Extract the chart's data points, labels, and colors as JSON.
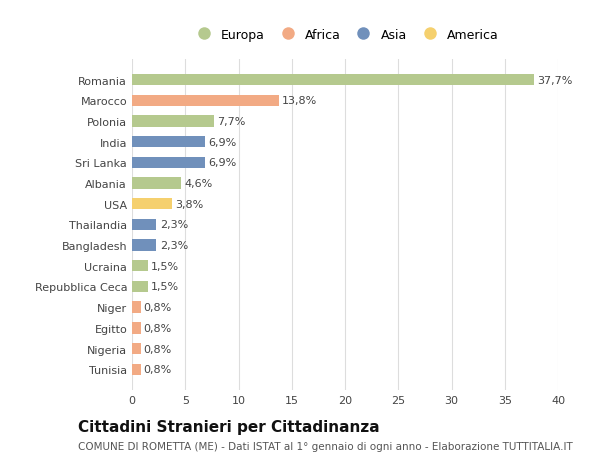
{
  "countries": [
    "Romania",
    "Marocco",
    "Polonia",
    "India",
    "Sri Lanka",
    "Albania",
    "USA",
    "Thailandia",
    "Bangladesh",
    "Ucraina",
    "Repubblica Ceca",
    "Niger",
    "Egitto",
    "Nigeria",
    "Tunisia"
  ],
  "values": [
    37.7,
    13.8,
    7.7,
    6.9,
    6.9,
    4.6,
    3.8,
    2.3,
    2.3,
    1.5,
    1.5,
    0.8,
    0.8,
    0.8,
    0.8
  ],
  "labels": [
    "37,7%",
    "13,8%",
    "7,7%",
    "6,9%",
    "6,9%",
    "4,6%",
    "3,8%",
    "2,3%",
    "2,3%",
    "1,5%",
    "1,5%",
    "0,8%",
    "0,8%",
    "0,8%",
    "0,8%"
  ],
  "continents": [
    "Europa",
    "Africa",
    "Europa",
    "Asia",
    "Asia",
    "Europa",
    "America",
    "Asia",
    "Asia",
    "Europa",
    "Europa",
    "Africa",
    "Africa",
    "Africa",
    "Africa"
  ],
  "colors": {
    "Europa": "#b5c98e",
    "Africa": "#f2aa84",
    "Asia": "#7090bb",
    "America": "#f5d06e"
  },
  "legend_order": [
    "Europa",
    "Africa",
    "Asia",
    "America"
  ],
  "xlim": [
    0,
    40
  ],
  "xticks": [
    0,
    5,
    10,
    15,
    20,
    25,
    30,
    35,
    40
  ],
  "title": "Cittadini Stranieri per Cittadinanza",
  "subtitle": "COMUNE DI ROMETTA (ME) - Dati ISTAT al 1° gennaio di ogni anno - Elaborazione TUTTITALIA.IT",
  "background_color": "#ffffff",
  "grid_color": "#dddddd",
  "bar_height": 0.55,
  "label_fontsize": 8,
  "tick_fontsize": 8,
  "title_fontsize": 11,
  "subtitle_fontsize": 7.5
}
